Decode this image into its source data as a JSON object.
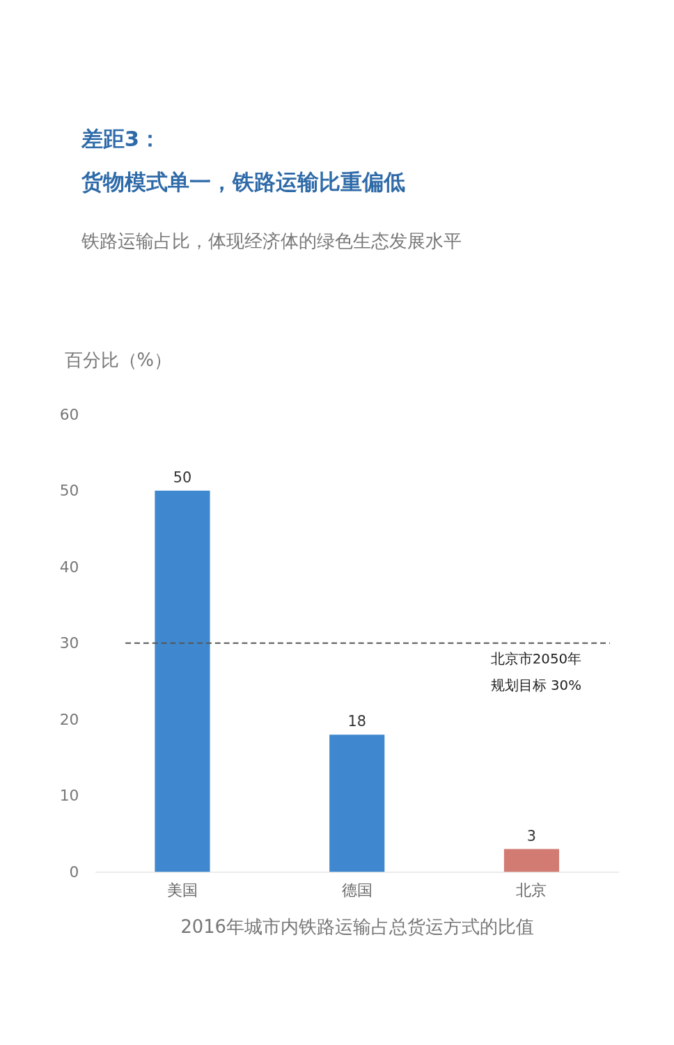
{
  "chart_data": {
    "type": "bar",
    "title": [
      "差距3：",
      "货物模式单一，铁路运输比重偏低"
    ],
    "subtitle": "铁路运输占比，体现经济体的绿色生态发展水平",
    "ylabel": "百分比（%）",
    "xlabel": "2016年城市内铁路运输占总货运方式的比值",
    "categories": [
      "美国",
      "德国",
      "北京"
    ],
    "values": [
      50,
      18,
      3
    ],
    "colors": [
      "#3f88cf",
      "#3f88cf",
      "#d17b72"
    ],
    "ylim": [
      0,
      60
    ],
    "yticks": [
      0,
      10,
      20,
      30,
      40,
      50,
      60
    ],
    "grid": false,
    "data_labels": true,
    "ref_lines": [
      {
        "axis": "y",
        "value": 30,
        "label": [
          "北京市2050年",
          "规划目标 30%"
        ],
        "color": "#555555",
        "line_style": "dashed"
      }
    ]
  }
}
